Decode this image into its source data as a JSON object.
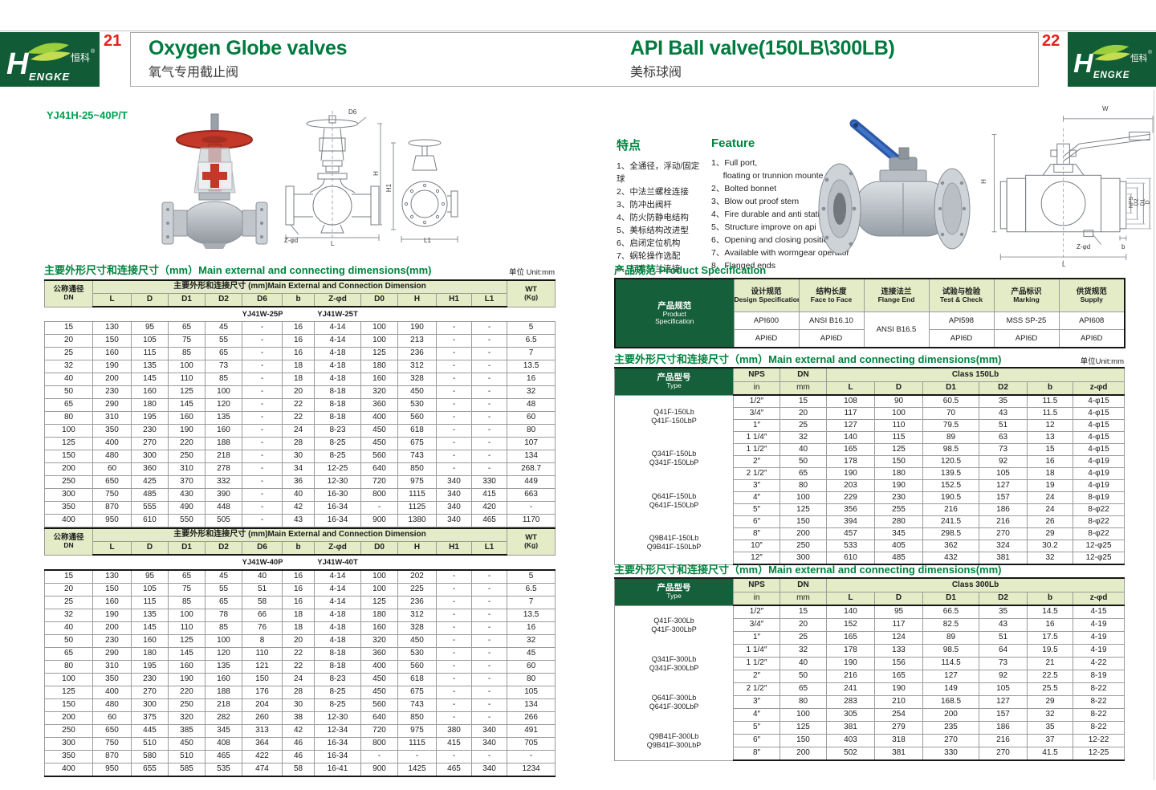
{
  "brand": {
    "h": "H",
    "cn": "恒科",
    "reg": "®",
    "engke": "ENGKE"
  },
  "left_page": {
    "page_number": "21",
    "title_en": "Oxygen Globe valves",
    "title_cn": "氧气专用截止阀",
    "model": "YJ41H-25~40P/T",
    "dims_title": "主要外形尺寸和连接尺寸（mm）Main external and connecting dimensions(mm)",
    "unit_label": "单位 Unit:mm",
    "table": {
      "dn_cn": "公称通径",
      "dn_en": "DN",
      "span_header": "主要外形和连接尺寸 (mm)Main External and Connection Dimension",
      "wt1": "WT",
      "wt2": "(Kg)",
      "columns": [
        "L",
        "D",
        "D1",
        "D2",
        "D6",
        "b",
        "Z-φd",
        "D0",
        "H",
        "H1",
        "L1"
      ],
      "sections": [
        {
          "model_p": "YJ41W-25P",
          "model_t": "YJ41W-25T",
          "rows": [
            [
              "15",
              "130",
              "95",
              "65",
              "45",
              "-",
              "16",
              "4-14",
              "100",
              "190",
              "-",
              "-",
              "5"
            ],
            [
              "20",
              "150",
              "105",
              "75",
              "55",
              "-",
              "16",
              "4-14",
              "100",
              "213",
              "-",
              "-",
              "6.5"
            ],
            [
              "25",
              "160",
              "115",
              "85",
              "65",
              "-",
              "16",
              "4-18",
              "125",
              "236",
              "-",
              "-",
              "7"
            ],
            [
              "32",
              "190",
              "135",
              "100",
              "73",
              "-",
              "18",
              "4-18",
              "180",
              "312",
              "-",
              "-",
              "13.5"
            ],
            [
              "40",
              "200",
              "145",
              "110",
              "85",
              "-",
              "18",
              "4-18",
              "160",
              "328",
              "-",
              "-",
              "16"
            ],
            [
              "50",
              "230",
              "160",
              "125",
              "100",
              "-",
              "20",
              "8-18",
              "320",
              "450",
              "-",
              "-",
              "32"
            ],
            [
              "65",
              "290",
              "180",
              "145",
              "120",
              "-",
              "22",
              "8-18",
              "360",
              "530",
              "-",
              "-",
              "48"
            ],
            [
              "80",
              "310",
              "195",
              "160",
              "135",
              "-",
              "22",
              "8-18",
              "400",
              "560",
              "-",
              "-",
              "60"
            ],
            [
              "100",
              "350",
              "230",
              "190",
              "160",
              "-",
              "24",
              "8-23",
              "450",
              "618",
              "-",
              "-",
              "80"
            ],
            [
              "125",
              "400",
              "270",
              "220",
              "188",
              "-",
              "28",
              "8-25",
              "450",
              "675",
              "-",
              "-",
              "107"
            ],
            [
              "150",
              "480",
              "300",
              "250",
              "218",
              "-",
              "30",
              "8-25",
              "560",
              "743",
              "-",
              "-",
              "134"
            ],
            [
              "200",
              "60",
              "360",
              "310",
              "278",
              "-",
              "34",
              "12-25",
              "640",
              "850",
              "-",
              "-",
              "268.7"
            ],
            [
              "250",
              "650",
              "425",
              "370",
              "332",
              "-",
              "36",
              "12-30",
              "720",
              "975",
              "340",
              "330",
              "449"
            ],
            [
              "300",
              "750",
              "485",
              "430",
              "390",
              "-",
              "40",
              "16-30",
              "800",
              "1115",
              "340",
              "415",
              "663"
            ],
            [
              "350",
              "870",
              "555",
              "490",
              "448",
              "-",
              "42",
              "16-34",
              "-",
              "1125",
              "340",
              "420",
              "-"
            ],
            [
              "400",
              "950",
              "610",
              "550",
              "505",
              "-",
              "43",
              "16-34",
              "900",
              "1380",
              "340",
              "465",
              "1170"
            ]
          ]
        },
        {
          "model_p": "YJ41W-40P",
          "model_t": "YJ41W-40T",
          "rows": [
            [
              "15",
              "130",
              "95",
              "65",
              "45",
              "40",
              "16",
              "4-14",
              "100",
              "202",
              "-",
              "-",
              "5"
            ],
            [
              "20",
              "150",
              "105",
              "75",
              "55",
              "51",
              "16",
              "4-14",
              "100",
              "225",
              "-",
              "-",
              "6.5"
            ],
            [
              "25",
              "160",
              "115",
              "85",
              "65",
              "58",
              "16",
              "4-14",
              "125",
              "236",
              "-",
              "-",
              "7"
            ],
            [
              "32",
              "190",
              "135",
              "100",
              "78",
              "66",
              "18",
              "4-18",
              "180",
              "312",
              "-",
              "-",
              "13.5"
            ],
            [
              "40",
              "200",
              "145",
              "110",
              "85",
              "76",
              "18",
              "4-18",
              "160",
              "328",
              "-",
              "-",
              "16"
            ],
            [
              "50",
              "230",
              "160",
              "125",
              "100",
              "8",
              "20",
              "4-18",
              "320",
              "450",
              "-",
              "-",
              "32"
            ],
            [
              "65",
              "290",
              "180",
              "145",
              "120",
              "110",
              "22",
              "8-18",
              "360",
              "530",
              "-",
              "-",
              "45"
            ],
            [
              "80",
              "310",
              "195",
              "160",
              "135",
              "121",
              "22",
              "8-18",
              "400",
              "560",
              "-",
              "-",
              "60"
            ],
            [
              "100",
              "350",
              "230",
              "190",
              "160",
              "150",
              "24",
              "8-23",
              "450",
              "618",
              "-",
              "-",
              "80"
            ],
            [
              "125",
              "400",
              "270",
              "220",
              "188",
              "176",
              "28",
              "8-25",
              "450",
              "675",
              "-",
              "-",
              "105"
            ],
            [
              "150",
              "480",
              "300",
              "250",
              "218",
              "204",
              "30",
              "8-25",
              "560",
              "743",
              "-",
              "-",
              "134"
            ],
            [
              "200",
              "60",
              "375",
              "320",
              "282",
              "260",
              "38",
              "12-30",
              "640",
              "850",
              "-",
              "-",
              "266"
            ],
            [
              "250",
              "650",
              "445",
              "385",
              "345",
              "313",
              "42",
              "12-34",
              "720",
              "975",
              "380",
              "340",
              "491"
            ],
            [
              "300",
              "750",
              "510",
              "450",
              "408",
              "364",
              "46",
              "16-34",
              "800",
              "1115",
              "415",
              "340",
              "705"
            ],
            [
              "350",
              "870",
              "580",
              "510",
              "465",
              "422",
              "46",
              "16-34",
              "-",
              "-",
              "-",
              "-",
              "-"
            ],
            [
              "400",
              "950",
              "655",
              "585",
              "535",
              "474",
              "58",
              "16-41",
              "900",
              "1425",
              "465",
              "340",
              "1234"
            ]
          ]
        }
      ]
    },
    "drawing_labels": {
      "d6": "D6",
      "h": "H",
      "zphid": "Z-φd",
      "l": "L",
      "h1": "H1",
      "l1": "L1"
    }
  },
  "right_page": {
    "page_number": "22",
    "title_en": "API Ball valve(150LB\\300LB)",
    "title_cn": "美标球阀",
    "features_cn": {
      "heading": "特点",
      "items": [
        "1、全通径，浮动/固定球",
        "2、中法兰螺栓连接",
        "3、防冲出阀杆",
        "4、防火防静电结构",
        "5、美标结构改进型",
        "6、启闭定位机构",
        "7、蜗轮操作选配",
        "8、标准法兰连接"
      ]
    },
    "features_en": {
      "heading": "Feature",
      "items": [
        "1、Full port,\n     floating or trunnion mounte type",
        "2、Bolted bonnet",
        "3、Blow out proof stem",
        "4、Fire durable and anti static safety",
        "5、Structure improve on api",
        "6、Opening and closing position",
        "7、Available with wormgear operator",
        "8、Flanged ends"
      ]
    },
    "spec": {
      "title": "产品规范  Product Specification",
      "rowhead_cn": "产品规范",
      "rowhead_en1": "Product",
      "rowhead_en2": "Specification",
      "cols": [
        {
          "cn": "设计规范",
          "en": "Design Specification"
        },
        {
          "cn": "结构长度",
          "en": "Face to Face"
        },
        {
          "cn": "连接法兰",
          "en": "Flange End"
        },
        {
          "cn": "试验与检验",
          "en": "Test & Check"
        },
        {
          "cn": "产品标识",
          "en": "Marking"
        },
        {
          "cn": "供货规范",
          "en": "Supply"
        }
      ],
      "flange_value": "ANSI B16.5",
      "row1": [
        "API600",
        "ANSI B16.10",
        "API598",
        "MSS SP-25",
        "API608"
      ],
      "row2": [
        "API6D",
        "API6D",
        "API6D",
        "API6D",
        "API6D"
      ]
    },
    "t150": {
      "title": "主要外形尺寸和连接尺寸（mm）Main external and connecting dimensions(mm)",
      "unit": "单位Unit:mm",
      "type_cn": "产品型号",
      "type_en": "Type",
      "nps": "NPS",
      "dn": "DN",
      "in": "in",
      "mm": "mm",
      "class_label": "Class 150Lb",
      "columns": [
        "L",
        "D",
        "D1",
        "D2",
        "b",
        "z-φd"
      ],
      "types": [
        "Q41F-150Lb",
        "Q41F-150LbP",
        "Q341F-150Lb",
        "Q341F-150LbP",
        "Q641F-150Lb",
        "Q641F-150LbP",
        "Q9B41F-150Lb",
        "Q9B41F-150LbP"
      ],
      "rows": [
        [
          "1/2″",
          "15",
          "108",
          "90",
          "60.5",
          "35",
          "11.5",
          "4-φ15"
        ],
        [
          "3/4″",
          "20",
          "117",
          "100",
          "70",
          "43",
          "11.5",
          "4-φ15"
        ],
        [
          "1″",
          "25",
          "127",
          "110",
          "79.5",
          "51",
          "12",
          "4-φ15"
        ],
        [
          "1 1/4″",
          "32",
          "140",
          "115",
          "89",
          "63",
          "13",
          "4-φ15"
        ],
        [
          "1 1/2″",
          "40",
          "165",
          "125",
          "98.5",
          "73",
          "15",
          "4-φ15"
        ],
        [
          "2″",
          "50",
          "178",
          "150",
          "120.5",
          "92",
          "16",
          "4-φ19"
        ],
        [
          "2 1/2″",
          "65",
          "190",
          "180",
          "139.5",
          "105",
          "18",
          "4-φ19"
        ],
        [
          "3″",
          "80",
          "203",
          "190",
          "152.5",
          "127",
          "19",
          "4-φ19"
        ],
        [
          "4″",
          "100",
          "229",
          "230",
          "190.5",
          "157",
          "24",
          "8-φ19"
        ],
        [
          "5″",
          "125",
          "356",
          "255",
          "216",
          "186",
          "24",
          "8-φ22"
        ],
        [
          "6″",
          "150",
          "394",
          "280",
          "241.5",
          "216",
          "26",
          "8-φ22"
        ],
        [
          "8″",
          "200",
          "457",
          "345",
          "298.5",
          "270",
          "29",
          "8-φ22"
        ],
        [
          "10″",
          "250",
          "533",
          "405",
          "362",
          "324",
          "30.2",
          "12-φ25"
        ],
        [
          "12″",
          "300",
          "610",
          "485",
          "432",
          "381",
          "32",
          "12-φ25"
        ]
      ]
    },
    "t300": {
      "title": "主要外形尺寸和连接尺寸（mm）Main external and connecting dimensions(mm)",
      "type_cn": "产品型号",
      "type_en": "Type",
      "nps": "NPS",
      "dn": "DN",
      "in": "in",
      "mm": "mm",
      "class_label": "Class 300Lb",
      "columns": [
        "L",
        "D",
        "D1",
        "D2",
        "b",
        "z-φd"
      ],
      "types": [
        "Q41F-300Lb",
        "Q41F-300LbP",
        "Q341F-300Lb",
        "Q341F-300LbP",
        "Q641F-300Lb",
        "Q641F-300LbP",
        "Q9B41F-300Lb",
        "Q9B41F-300LbP"
      ],
      "rows": [
        [
          "1/2″",
          "15",
          "140",
          "95",
          "66.5",
          "35",
          "14.5",
          "4-15"
        ],
        [
          "3/4″",
          "20",
          "152",
          "117",
          "82.5",
          "43",
          "16",
          "4-19"
        ],
        [
          "1″",
          "25",
          "165",
          "124",
          "89",
          "51",
          "17.5",
          "4-19"
        ],
        [
          "1 1/4″",
          "32",
          "178",
          "133",
          "98.5",
          "64",
          "19.5",
          "4-19"
        ],
        [
          "1 1/2″",
          "40",
          "190",
          "156",
          "114.5",
          "73",
          "21",
          "4-22"
        ],
        [
          "2″",
          "50",
          "216",
          "165",
          "127",
          "92",
          "22.5",
          "8-19"
        ],
        [
          "2 1/2″",
          "65",
          "241",
          "190",
          "149",
          "105",
          "25.5",
          "8-22"
        ],
        [
          "3″",
          "80",
          "283",
          "210",
          "168.5",
          "127",
          "29",
          "8-22"
        ],
        [
          "4″",
          "100",
          "305",
          "254",
          "200",
          "157",
          "32",
          "8-22"
        ],
        [
          "5″",
          "125",
          "381",
          "279",
          "235",
          "186",
          "35",
          "8-22"
        ],
        [
          "6″",
          "150",
          "403",
          "318",
          "270",
          "216",
          "37",
          "12-22"
        ],
        [
          "8″",
          "200",
          "502",
          "381",
          "330",
          "270",
          "41.5",
          "12-25"
        ]
      ]
    },
    "drawing_labels": {
      "w": "W",
      "h": "H",
      "nps": "NPS",
      "d2": "D2",
      "d1": "D1",
      "d": "D",
      "zphid": "Z-φd",
      "b": "b",
      "l": "L"
    }
  }
}
